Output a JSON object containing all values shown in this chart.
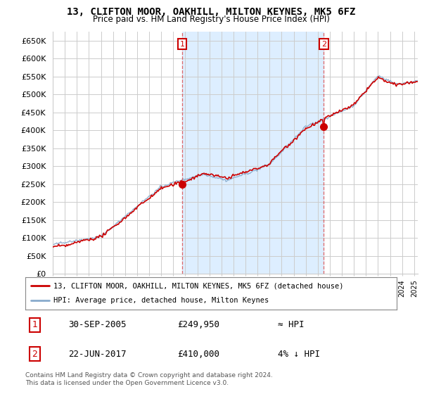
{
  "title": "13, CLIFTON MOOR, OAKHILL, MILTON KEYNES, MK5 6FZ",
  "subtitle": "Price paid vs. HM Land Registry's House Price Index (HPI)",
  "ylabel_ticks": [
    "£0",
    "£50K",
    "£100K",
    "£150K",
    "£200K",
    "£250K",
    "£300K",
    "£350K",
    "£400K",
    "£450K",
    "£500K",
    "£550K",
    "£600K",
    "£650K"
  ],
  "ytick_vals": [
    0,
    50000,
    100000,
    150000,
    200000,
    250000,
    300000,
    350000,
    400000,
    450000,
    500000,
    550000,
    600000,
    650000
  ],
  "legend_line1": "13, CLIFTON MOOR, OAKHILL, MILTON KEYNES, MK5 6FZ (detached house)",
  "legend_line2": "HPI: Average price, detached house, Milton Keynes",
  "annotation1_label": "1",
  "annotation1_date": "30-SEP-2005",
  "annotation1_price": "£249,950",
  "annotation1_hpi": "≈ HPI",
  "annotation2_label": "2",
  "annotation2_date": "22-JUN-2017",
  "annotation2_price": "£410,000",
  "annotation2_hpi": "4% ↓ HPI",
  "footer": "Contains HM Land Registry data © Crown copyright and database right 2024.\nThis data is licensed under the Open Government Licence v3.0.",
  "line_color_red": "#cc0000",
  "line_color_blue": "#88aacc",
  "vline_color": "#dd4444",
  "grid_color": "#cccccc",
  "background_color": "#ffffff",
  "plot_bg_color": "#ffffff",
  "shade_color": "#ddeeff",
  "annotation_box_color": "#cc0000",
  "sale1_t": 2005.75,
  "sale1_p": 249950,
  "sale2_t": 2017.5,
  "sale2_p": 410000,
  "xmin": 1995,
  "xmax": 2025,
  "ymin": 0,
  "ymax": 650000
}
